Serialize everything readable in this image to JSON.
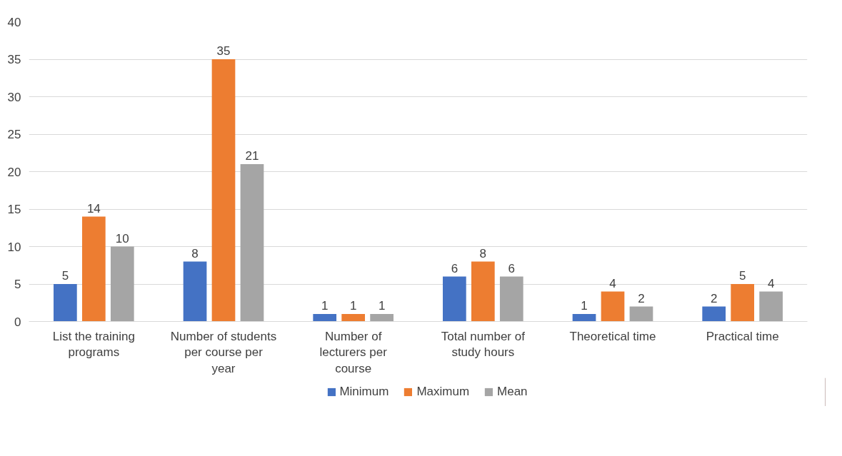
{
  "chart_data": {
    "type": "bar",
    "categories": [
      "List the training programs",
      "Number of students per course per year",
      "Number of lecturers per course",
      "Total number of study hours",
      "Theoretical time",
      "Practical time"
    ],
    "series": [
      {
        "name": "Minimum",
        "color": "#4472c4",
        "values": [
          5,
          8,
          1,
          6,
          1,
          2
        ]
      },
      {
        "name": "Maximum",
        "color": "#ed7d31",
        "values": [
          14,
          35,
          1,
          8,
          4,
          5
        ]
      },
      {
        "name": "Mean",
        "color": "#a5a5a5",
        "values": [
          10,
          21,
          1,
          6,
          2,
          4
        ]
      }
    ],
    "ylim": [
      0,
      40
    ],
    "yticks": [
      0,
      5,
      10,
      15,
      20,
      25,
      30,
      35,
      40
    ],
    "grid": "y",
    "legend": "bottom",
    "data_labels": true
  }
}
